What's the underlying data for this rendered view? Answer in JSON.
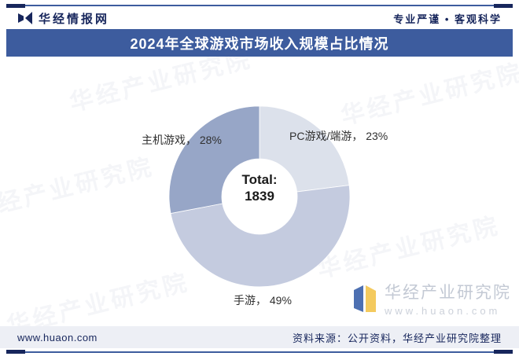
{
  "header": {
    "brand": "华经情报网",
    "logo_icon": "huajing-logo",
    "tagline": "专业严谨 • 客观科学"
  },
  "title": "2024年全球游戏市场收入规模占比情况",
  "chart_data": {
    "type": "pie",
    "donut": true,
    "title": "2024年全球游戏市场收入规模占比情况",
    "center_label": "Total:",
    "center_value": "1839",
    "start_angle_deg": 0,
    "direction": "clockwise",
    "legend_position": "none",
    "slices": [
      {
        "name": "PC游戏/端游",
        "value": 23,
        "display": "PC游戏/端游， 23%",
        "color": "#dce1eb"
      },
      {
        "name": "手游",
        "value": 49,
        "display": "手游， 49%",
        "color": "#c4cbdf"
      },
      {
        "name": "主机游戏",
        "value": 28,
        "display": "主机游戏， 28%",
        "color": "#97a6c7"
      }
    ]
  },
  "watermark": {
    "diagonal_text": "华经产业研究院",
    "brand_name": "华经产业研究院",
    "brand_url": "www.huaon.com"
  },
  "footer": {
    "website": "www.huaon.com",
    "source": "资料来源：公开资料，华经产业研究院整理"
  },
  "colors": {
    "title_bar": "#3d5c9e",
    "accent_navy": "#17265c",
    "footer_band": "#edeff5",
    "logo_blue": "#2e57a5",
    "logo_yellow": "#f3c44c"
  }
}
